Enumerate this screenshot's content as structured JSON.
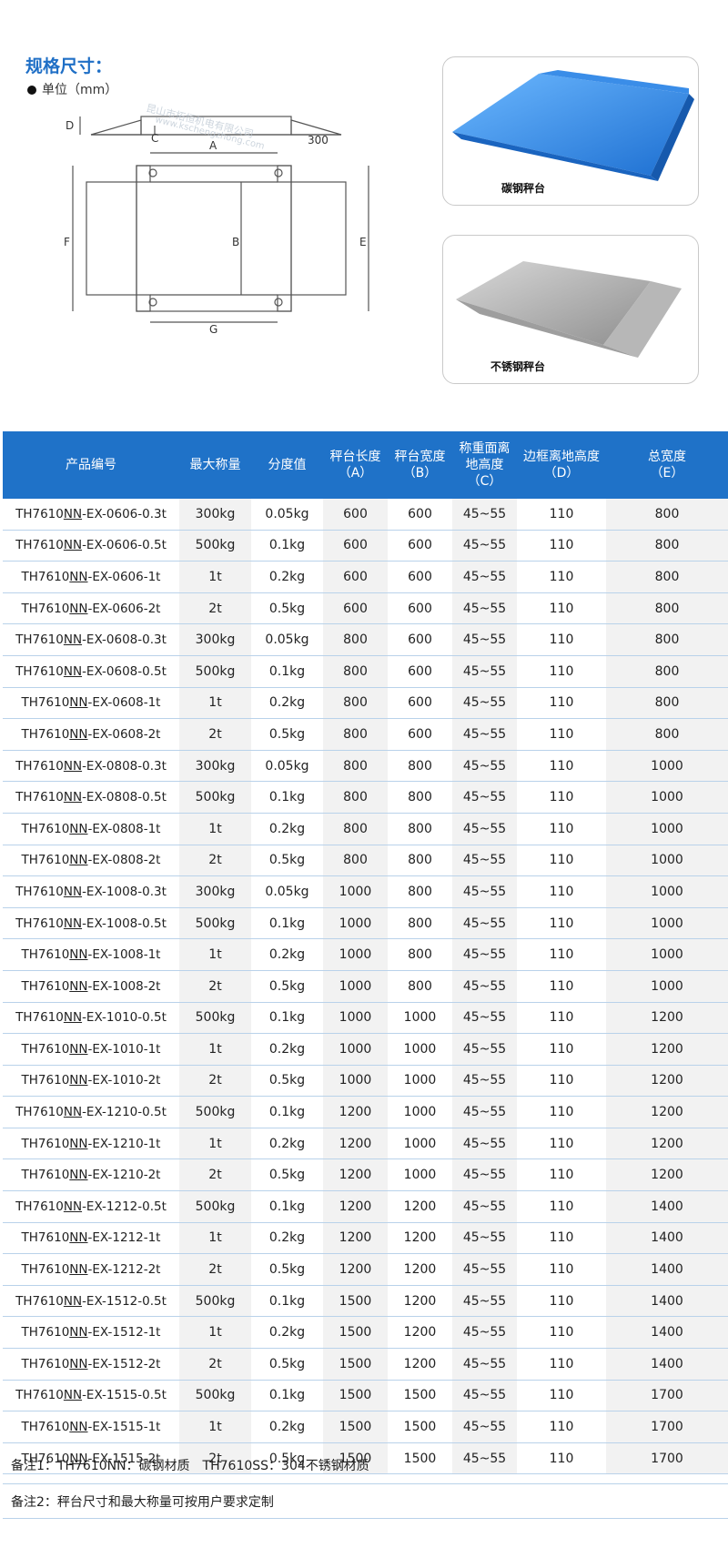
{
  "spec": {
    "title": "规格尺寸：",
    "unit": "单位（mm）"
  },
  "diagram": {
    "labels": {
      "A": "A",
      "B": "B",
      "C": "C",
      "D": "D",
      "E": "E",
      "F": "F",
      "G": "G",
      "ramp": "300"
    },
    "watermark_cn": "昆山市拓恒机电有限公司",
    "watermark_url": "www.kschengzhong.com"
  },
  "photos": [
    {
      "caption": "碳钢秤台",
      "color": "#2f8ae6"
    },
    {
      "caption": "不锈钢秤台",
      "color": "#a9a9a9"
    }
  ],
  "table": {
    "headers": [
      [
        "产品编号"
      ],
      [
        "最大称量"
      ],
      [
        "分度值"
      ],
      [
        "秤台长度",
        "（A）"
      ],
      [
        "秤台宽度",
        "（B）"
      ],
      [
        "称重面离",
        "地高度",
        "（C）"
      ],
      [
        "边框离地高度",
        "（D）"
      ],
      [
        "总宽度",
        "（E）"
      ]
    ],
    "model_prefix": "TH7610",
    "model_series": "NN",
    "rows": [
      [
        "-EX-0606-0.3t",
        "300kg",
        "0.05kg",
        "600",
        "600",
        "45~55",
        "110",
        "800"
      ],
      [
        "-EX-0606-0.5t",
        "500kg",
        "0.1kg",
        "600",
        "600",
        "45~55",
        "110",
        "800"
      ],
      [
        "-EX-0606-1t",
        "1t",
        "0.2kg",
        "600",
        "600",
        "45~55",
        "110",
        "800"
      ],
      [
        "-EX-0606-2t",
        "2t",
        "0.5kg",
        "600",
        "600",
        "45~55",
        "110",
        "800"
      ],
      [
        "-EX-0608-0.3t",
        "300kg",
        "0.05kg",
        "800",
        "600",
        "45~55",
        "110",
        "800"
      ],
      [
        "-EX-0608-0.5t",
        "500kg",
        "0.1kg",
        "800",
        "600",
        "45~55",
        "110",
        "800"
      ],
      [
        "-EX-0608-1t",
        "1t",
        "0.2kg",
        "800",
        "600",
        "45~55",
        "110",
        "800"
      ],
      [
        "-EX-0608-2t",
        "2t",
        "0.5kg",
        "800",
        "600",
        "45~55",
        "110",
        "800"
      ],
      [
        "-EX-0808-0.3t",
        "300kg",
        "0.05kg",
        "800",
        "800",
        "45~55",
        "110",
        "1000"
      ],
      [
        "-EX-0808-0.5t",
        "500kg",
        "0.1kg",
        "800",
        "800",
        "45~55",
        "110",
        "1000"
      ],
      [
        "-EX-0808-1t",
        "1t",
        "0.2kg",
        "800",
        "800",
        "45~55",
        "110",
        "1000"
      ],
      [
        "-EX-0808-2t",
        "2t",
        "0.5kg",
        "800",
        "800",
        "45~55",
        "110",
        "1000"
      ],
      [
        "-EX-1008-0.3t",
        "300kg",
        "0.05kg",
        "1000",
        "800",
        "45~55",
        "110",
        "1000"
      ],
      [
        "-EX-1008-0.5t",
        "500kg",
        "0.1kg",
        "1000",
        "800",
        "45~55",
        "110",
        "1000"
      ],
      [
        "-EX-1008-1t",
        "1t",
        "0.2kg",
        "1000",
        "800",
        "45~55",
        "110",
        "1000"
      ],
      [
        "-EX-1008-2t",
        "2t",
        "0.5kg",
        "1000",
        "800",
        "45~55",
        "110",
        "1000"
      ],
      [
        "-EX-1010-0.5t",
        "500kg",
        "0.1kg",
        "1000",
        "1000",
        "45~55",
        "110",
        "1200"
      ],
      [
        "-EX-1010-1t",
        "1t",
        "0.2kg",
        "1000",
        "1000",
        "45~55",
        "110",
        "1200"
      ],
      [
        "-EX-1010-2t",
        "2t",
        "0.5kg",
        "1000",
        "1000",
        "45~55",
        "110",
        "1200"
      ],
      [
        "-EX-1210-0.5t",
        "500kg",
        "0.1kg",
        "1200",
        "1000",
        "45~55",
        "110",
        "1200"
      ],
      [
        "-EX-1210-1t",
        "1t",
        "0.2kg",
        "1200",
        "1000",
        "45~55",
        "110",
        "1200"
      ],
      [
        "-EX-1210-2t",
        "2t",
        "0.5kg",
        "1200",
        "1000",
        "45~55",
        "110",
        "1200"
      ],
      [
        "-EX-1212-0.5t",
        "500kg",
        "0.1kg",
        "1200",
        "1200",
        "45~55",
        "110",
        "1400"
      ],
      [
        "-EX-1212-1t",
        "1t",
        "0.2kg",
        "1200",
        "1200",
        "45~55",
        "110",
        "1400"
      ],
      [
        "-EX-1212-2t",
        "2t",
        "0.5kg",
        "1200",
        "1200",
        "45~55",
        "110",
        "1400"
      ],
      [
        "-EX-1512-0.5t",
        "500kg",
        "0.1kg",
        "1500",
        "1200",
        "45~55",
        "110",
        "1400"
      ],
      [
        "-EX-1512-1t",
        "1t",
        "0.2kg",
        "1500",
        "1200",
        "45~55",
        "110",
        "1400"
      ],
      [
        "-EX-1512-2t",
        "2t",
        "0.5kg",
        "1500",
        "1200",
        "45~55",
        "110",
        "1400"
      ],
      [
        "-EX-1515-0.5t",
        "500kg",
        "0.1kg",
        "1500",
        "1500",
        "45~55",
        "110",
        "1700"
      ],
      [
        "-EX-1515-1t",
        "1t",
        "0.2kg",
        "1500",
        "1500",
        "45~55",
        "110",
        "1700"
      ],
      [
        "-EX-1515-2t",
        "2t",
        "0.5kg",
        "1500",
        "1500",
        "45~55",
        "110",
        "1700"
      ]
    ]
  },
  "notes": {
    "note1": "备注1：TH7610NN：碳钢材质　TH7610SS：304不锈钢材质",
    "note2": "备注2：秤台尺寸和最大称量可按用户要求定制"
  }
}
